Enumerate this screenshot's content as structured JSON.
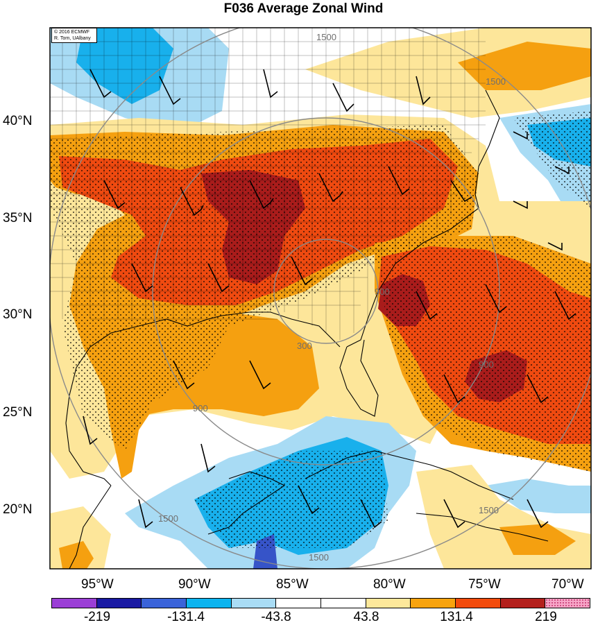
{
  "title": "F036 Average Zonal Wind",
  "credit": {
    "line1": "© 2016 ECMWF",
    "line2": "R. Torn, UAlbany"
  },
  "lat_labels": [
    "40°N",
    "35°N",
    "30°N",
    "25°N",
    "20°N"
  ],
  "lon_labels": [
    "95°W",
    "90°W",
    "85°W",
    "80°W",
    "75°W",
    "70°W"
  ],
  "contour_labels": [
    "300",
    "900",
    "900",
    "1500",
    "1500",
    "1500",
    "900",
    "1500",
    "1500"
  ],
  "colorbar": {
    "colors": [
      "#9b3fd6",
      "#1a1aa3",
      "#3a63d9",
      "#0db4ef",
      "#a9dcf5",
      "#ffffff",
      "#ffffff",
      "#fde89b",
      "#f8a30e",
      "#f24b0c",
      "#b3201c",
      "#f7a6c8"
    ],
    "labels": [
      "-219",
      "-131.4",
      "-43.8",
      "43.8",
      "131.4",
      "219"
    ]
  },
  "colors": {
    "dark_red": "#a91c1b",
    "red": "#ef4a10",
    "orange": "#f5a010",
    "yellow": "#fde69a",
    "light_blue": "#a8dbf4",
    "blue": "#18b0ec",
    "dark_blue": "#3654c8"
  }
}
